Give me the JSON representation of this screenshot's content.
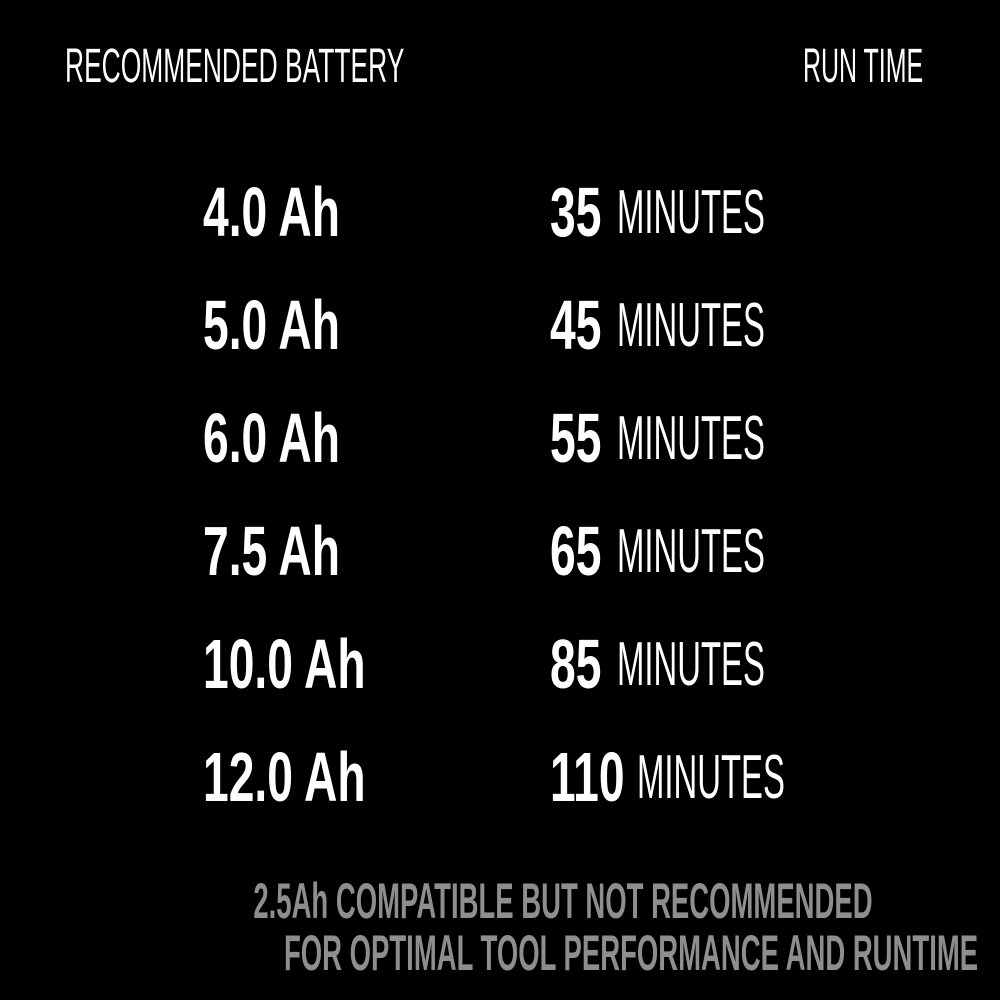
{
  "header": {
    "left": "RECOMMENDED BATTERY",
    "right": "RUN TIME"
  },
  "rows": [
    {
      "battery": "4.0 Ah",
      "runtime": "35",
      "unit": "MINUTES"
    },
    {
      "battery": "5.0 Ah",
      "runtime": "45",
      "unit": "MINUTES"
    },
    {
      "battery": "6.0 Ah",
      "runtime": "55",
      "unit": "MINUTES"
    },
    {
      "battery": "7.5 Ah",
      "runtime": "65",
      "unit": "MINUTES"
    },
    {
      "battery": "10.0 Ah",
      "runtime": "85",
      "unit": "MINUTES"
    },
    {
      "battery": "12.0 Ah",
      "runtime": "110",
      "unit": "MINUTES"
    }
  ],
  "footer": {
    "line1": "2.5Ah COMPATIBLE BUT NOT RECOMMENDED",
    "line2": "FOR OPTIMAL TOOL PERFORMANCE AND RUNTIME"
  },
  "colors": {
    "background": "#000000",
    "text": "#ffffff",
    "footer": "#8e8e8e"
  }
}
